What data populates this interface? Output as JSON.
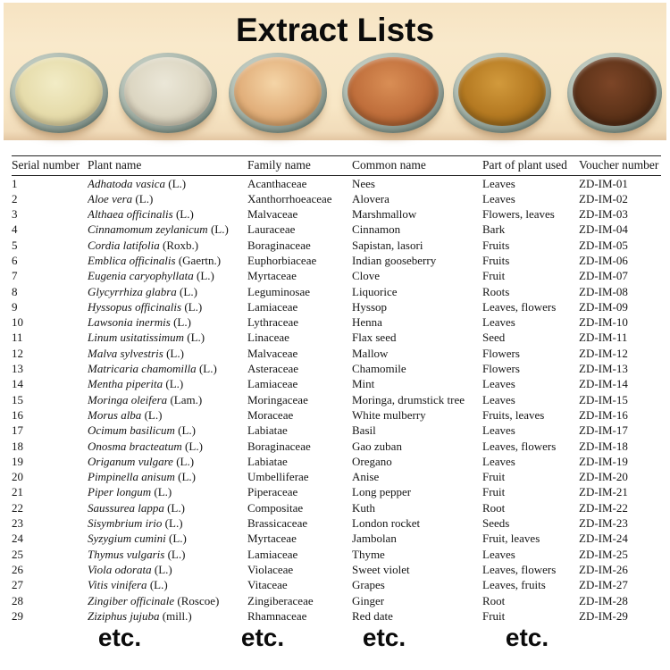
{
  "title": "Extract Lists",
  "banner": {
    "background_color": "#f8e7c6",
    "bowls": [
      {
        "name": "bowl-pale-yellow-extract",
        "highlight": "#f2ecc6",
        "base": "#e6dcab",
        "shadow": "#c2b586"
      },
      {
        "name": "bowl-offwhite-extract",
        "highlight": "#ebe7d8",
        "base": "#dcd6c2",
        "shadow": "#b2aa96"
      },
      {
        "name": "bowl-tan-extract",
        "highlight": "#f5d5a7",
        "base": "#e2b07c",
        "shadow": "#bd8950"
      },
      {
        "name": "bowl-terracotta-extract",
        "highlight": "#d98e55",
        "base": "#c06f3c",
        "shadow": "#8a4920"
      },
      {
        "name": "bowl-golden-brown-extract",
        "highlight": "#d29a3c",
        "base": "#b57a22",
        "shadow": "#775010"
      },
      {
        "name": "bowl-dark-brown-extract",
        "highlight": "#7c4527",
        "base": "#5e3319",
        "shadow": "#381d0c"
      }
    ]
  },
  "table": {
    "columns": [
      "Serial number",
      "Plant name",
      "Family name",
      "Common name",
      "Part of plant used",
      "Voucher number"
    ],
    "rows": [
      {
        "serial": "1",
        "plant": "Adhatoda vasica",
        "authority": "(L.)",
        "family": "Acanthaceae",
        "common": "Nees",
        "part": "Leaves",
        "voucher": "ZD-IM-01"
      },
      {
        "serial": "2",
        "plant": "Aloe vera",
        "authority": "(L.)",
        "family": "Xanthorrhoeaceae",
        "common": "Alovera",
        "part": "Leaves",
        "voucher": "ZD-IM-02"
      },
      {
        "serial": "3",
        "plant": "Althaea officinalis",
        "authority": "(L.)",
        "family": "Malvaceae",
        "common": "Marshmallow",
        "part": "Flowers, leaves",
        "voucher": "ZD-IM-03"
      },
      {
        "serial": "4",
        "plant": "Cinnamomum zeylanicum",
        "authority": "(L.)",
        "family": "Lauraceae",
        "common": "Cinnamon",
        "part": "Bark",
        "voucher": "ZD-IM-04"
      },
      {
        "serial": "5",
        "plant": "Cordia latifolia",
        "authority": "(Roxb.)",
        "family": "Boraginaceae",
        "common": "Sapistan, lasori",
        "part": "Fruits",
        "voucher": "ZD-IM-05"
      },
      {
        "serial": "6",
        "plant": "Emblica officinalis",
        "authority": "(Gaertn.)",
        "family": "Euphorbiaceae",
        "common": "Indian gooseberry",
        "part": "Fruits",
        "voucher": "ZD-IM-06"
      },
      {
        "serial": "7",
        "plant": "Eugenia caryophyllata",
        "authority": "(L.)",
        "family": "Myrtaceae",
        "common": "Clove",
        "part": "Fruit",
        "voucher": "ZD-IM-07"
      },
      {
        "serial": "8",
        "plant": "Glycyrrhiza glabra",
        "authority": "(L.)",
        "family": "Leguminosae",
        "common": "Liquorice",
        "part": "Roots",
        "voucher": "ZD-IM-08"
      },
      {
        "serial": "9",
        "plant": "Hyssopus officinalis",
        "authority": "(L.)",
        "family": "Lamiaceae",
        "common": "Hyssop",
        "part": "Leaves, flowers",
        "voucher": "ZD-IM-09"
      },
      {
        "serial": "10",
        "plant": "Lawsonia inermis",
        "authority": "(L.)",
        "family": "Lythraceae",
        "common": "Henna",
        "part": "Leaves",
        "voucher": "ZD-IM-10"
      },
      {
        "serial": "11",
        "plant": "Linum usitatissimum",
        "authority": "(L.)",
        "family": "Linaceae",
        "common": "Flax seed",
        "part": "Seed",
        "voucher": "ZD-IM-11"
      },
      {
        "serial": "12",
        "plant": "Malva sylvestris",
        "authority": "(L.)",
        "family": "Malvaceae",
        "common": "Mallow",
        "part": "Flowers",
        "voucher": "ZD-IM-12"
      },
      {
        "serial": "13",
        "plant": "Matricaria chamomilla",
        "authority": "(L.)",
        "family": "Asteraceae",
        "common": "Chamomile",
        "part": "Flowers",
        "voucher": "ZD-IM-13"
      },
      {
        "serial": "14",
        "plant": "Mentha piperita",
        "authority": "(L.)",
        "family": "Lamiaceae",
        "common": "Mint",
        "part": "Leaves",
        "voucher": "ZD-IM-14"
      },
      {
        "serial": "15",
        "plant": "Moringa oleifera",
        "authority": "(Lam.)",
        "family": "Moringaceae",
        "common": "Moringa, drumstick tree",
        "part": "Leaves",
        "voucher": "ZD-IM-15"
      },
      {
        "serial": "16",
        "plant": "Morus alba",
        "authority": "(L.)",
        "family": "Moraceae",
        "common": "White mulberry",
        "part": "Fruits, leaves",
        "voucher": "ZD-IM-16"
      },
      {
        "serial": "17",
        "plant": "Ocimum basilicum",
        "authority": "(L.)",
        "family": "Labiatae",
        "common": "Basil",
        "part": "Leaves",
        "voucher": "ZD-IM-17"
      },
      {
        "serial": "18",
        "plant": "Onosma bracteatum",
        "authority": "(L.)",
        "family": "Boraginaceae",
        "common": "Gao zuban",
        "part": "Leaves, flowers",
        "voucher": "ZD-IM-18"
      },
      {
        "serial": "19",
        "plant": "Origanum vulgare",
        "authority": "(L.)",
        "family": "Labiatae",
        "common": "Oregano",
        "part": "Leaves",
        "voucher": "ZD-IM-19"
      },
      {
        "serial": "20",
        "plant": "Pimpinella anisum",
        "authority": "(L.)",
        "family": "Umbelliferae",
        "common": "Anise",
        "part": "Fruit",
        "voucher": "ZD-IM-20"
      },
      {
        "serial": "21",
        "plant": "Piper longum",
        "authority": "(L.)",
        "family": "Piperaceae",
        "common": "Long pepper",
        "part": "Fruit",
        "voucher": "ZD-IM-21"
      },
      {
        "serial": "22",
        "plant": "Saussurea lappa",
        "authority": "(L.)",
        "family": "Compositae",
        "common": "Kuth",
        "part": "Root",
        "voucher": "ZD-IM-22"
      },
      {
        "serial": "23",
        "plant": "Sisymbrium irio",
        "authority": "(L.)",
        "family": "Brassicaceae",
        "common": "London rocket",
        "part": "Seeds",
        "voucher": "ZD-IM-23"
      },
      {
        "serial": "24",
        "plant": "Syzygium cumini",
        "authority": "(L.)",
        "family": "Myrtaceae",
        "common": "Jambolan",
        "part": "Fruit, leaves",
        "voucher": "ZD-IM-24"
      },
      {
        "serial": "25",
        "plant": "Thymus vulgaris",
        "authority": "(L.)",
        "family": "Lamiaceae",
        "common": "Thyme",
        "part": "Leaves",
        "voucher": "ZD-IM-25"
      },
      {
        "serial": "26",
        "plant": "Viola odorata",
        "authority": "(L.)",
        "family": "Violaceae",
        "common": "Sweet violet",
        "part": "Leaves, flowers",
        "voucher": "ZD-IM-26"
      },
      {
        "serial": "27",
        "plant": "Vitis vinifera",
        "authority": "(L.)",
        "family": "Vitaceae",
        "common": "Grapes",
        "part": "Leaves, fruits",
        "voucher": "ZD-IM-27"
      },
      {
        "serial": "28",
        "plant": "Zingiber officinale",
        "authority": "(Roscoe)",
        "family": "Zingiberaceae",
        "common": "Ginger",
        "part": "Root",
        "voucher": "ZD-IM-28"
      },
      {
        "serial": "29",
        "plant": "Ziziphus jujuba",
        "authority": "(mill.)",
        "family": "Rhamnaceae",
        "common": "Red date",
        "part": "Fruit",
        "voucher": "ZD-IM-29"
      }
    ]
  },
  "footer": {
    "etc_labels": [
      "etc.",
      "etc.",
      "etc.",
      "etc."
    ]
  }
}
